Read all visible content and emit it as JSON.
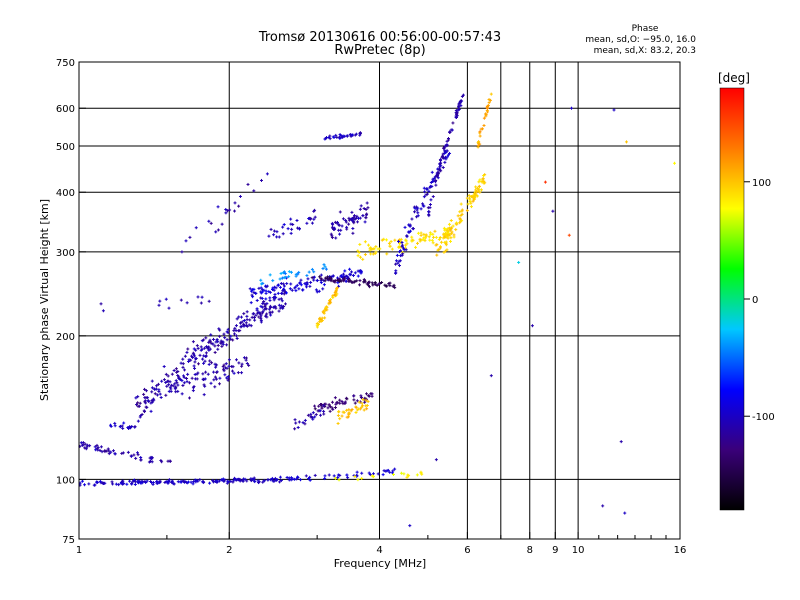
{
  "chart_data": {
    "type": "scatter",
    "title": "Tromsø 20130616 00:56:00-00:57:43",
    "subtitle": "RwPretec (8p)",
    "xlabel": "Frequency [MHz]",
    "ylabel": "Stationary phase Virtual Height [km]",
    "x_scale": "log",
    "y_scale": "log",
    "xlim": [
      1,
      16
    ],
    "ylim": [
      75,
      750
    ],
    "x_ticks": [
      1,
      2,
      4,
      6,
      8,
      9,
      10,
      16
    ],
    "x_tick_labels": [
      "1",
      "2",
      "4",
      "6",
      "8",
      "9",
      "10",
      "16"
    ],
    "x_gridlines": [
      2,
      4,
      6,
      7,
      8,
      9,
      10
    ],
    "y_ticks": [
      75,
      100,
      200,
      300,
      400,
      500,
      600,
      750
    ],
    "y_tick_labels": [
      "75",
      "100",
      "200",
      "300",
      "400",
      "500",
      "600",
      "750"
    ],
    "y_gridlines": [
      100,
      200,
      300,
      400,
      500,
      600
    ],
    "grid": true,
    "colorbar": {
      "label": "[deg]",
      "min": -180,
      "max": 180,
      "tick_values": [
        100,
        0,
        -100
      ],
      "tick_labels": [
        "100",
        "0",
        "-100"
      ],
      "colors": [
        "#000000",
        "#3a007a",
        "#0000ff",
        "#00c8ff",
        "#00ff00",
        "#ffff00",
        "#ff7a00",
        "#ff0000"
      ]
    },
    "stats": {
      "heading": "Phase",
      "line_o": "mean, sd,O: −95.0, 16.0",
      "line_x": "mean, sd,X:  83.2, 20.3"
    },
    "traces": [
      {
        "f0": 1.0,
        "f1": 2.6,
        "h0": 98,
        "h1": 100,
        "phase": -100,
        "n": 160,
        "jit": 1.5
      },
      {
        "f0": 2.6,
        "f1": 4.3,
        "h0": 100,
        "h1": 104,
        "phase": -95,
        "n": 45,
        "jit": 2
      },
      {
        "f0": 3.2,
        "f1": 4.9,
        "h0": 100,
        "h1": 103,
        "phase": 80,
        "n": 18,
        "jit": 2
      },
      {
        "f0": 1.0,
        "f1": 1.55,
        "h0": 118,
        "h1": 108,
        "phase": -110,
        "n": 55,
        "jit": 3
      },
      {
        "f0": 1.15,
        "f1": 1.3,
        "h0": 130,
        "h1": 128,
        "phase": -100,
        "n": 18,
        "jit": 3
      },
      {
        "f0": 1.3,
        "f1": 2.6,
        "h0": 140,
        "h1": 240,
        "phase": -110,
        "n": 260,
        "jit": 18
      },
      {
        "f0": 1.5,
        "f1": 2.2,
        "h0": 155,
        "h1": 175,
        "phase": -110,
        "n": 80,
        "jit": 15
      },
      {
        "f0": 2.2,
        "f1": 3.7,
        "h0": 245,
        "h1": 270,
        "phase": -95,
        "n": 130,
        "jit": 15
      },
      {
        "f0": 2.3,
        "f1": 3.2,
        "h0": 260,
        "h1": 280,
        "phase": -40,
        "n": 28,
        "jit": 10
      },
      {
        "f0": 2.9,
        "f1": 4.3,
        "h0": 265,
        "h1": 255,
        "phase": -140,
        "n": 70,
        "jit": 5
      },
      {
        "f0": 3.0,
        "f1": 3.3,
        "h0": 210,
        "h1": 250,
        "phase": 100,
        "n": 45,
        "jit": 8
      },
      {
        "f0": 3.2,
        "f1": 3.8,
        "h0": 330,
        "h1": 370,
        "phase": -110,
        "n": 60,
        "jit": 30
      },
      {
        "f0": 3.6,
        "f1": 5.6,
        "h0": 300,
        "h1": 330,
        "phase": 90,
        "n": 95,
        "jit": 20
      },
      {
        "f0": 4.3,
        "f1": 5.6,
        "h0": 280,
        "h1": 500,
        "phase": -100,
        "n": 90,
        "jit": 25
      },
      {
        "f0": 5.0,
        "f1": 5.9,
        "h0": 360,
        "h1": 640,
        "phase": -110,
        "n": 75,
        "jit": 20
      },
      {
        "f0": 5.2,
        "f1": 6.5,
        "h0": 295,
        "h1": 420,
        "phase": 95,
        "n": 100,
        "jit": 25
      },
      {
        "f0": 6.3,
        "f1": 6.7,
        "h0": 500,
        "h1": 640,
        "phase": 110,
        "n": 28,
        "jit": 25
      },
      {
        "f0": 3.1,
        "f1": 3.7,
        "h0": 520,
        "h1": 530,
        "phase": -100,
        "n": 32,
        "jit": 8
      },
      {
        "f0": 2.9,
        "f1": 3.9,
        "h0": 140,
        "h1": 150,
        "phase": -130,
        "n": 55,
        "jit": 6
      },
      {
        "f0": 3.3,
        "f1": 3.8,
        "h0": 135,
        "h1": 145,
        "phase": 100,
        "n": 35,
        "jit": 6
      },
      {
        "f0": 2.7,
        "f1": 3.1,
        "h0": 130,
        "h1": 140,
        "phase": -110,
        "n": 22,
        "jit": 6
      },
      {
        "f0": 1.6,
        "f1": 2.4,
        "h0": 300,
        "h1": 430,
        "phase": -110,
        "n": 22,
        "jit": 30
      },
      {
        "f0": 2.4,
        "f1": 3.0,
        "h0": 320,
        "h1": 360,
        "phase": -105,
        "n": 30,
        "jit": 25
      },
      {
        "f0": 1.0,
        "f1": 2.0,
        "h0": 230,
        "h1": 240,
        "phase": -110,
        "n": 12,
        "jit": 10
      }
    ],
    "scatter_extra": [
      {
        "f": 8.1,
        "h": 210,
        "phase": -110
      },
      {
        "f": 8.6,
        "h": 420,
        "phase": 160
      },
      {
        "f": 8.9,
        "h": 365,
        "phase": -110
      },
      {
        "f": 9.6,
        "h": 325,
        "phase": 150
      },
      {
        "f": 9.7,
        "h": 600,
        "phase": -100
      },
      {
        "f": 11.2,
        "h": 88,
        "phase": -110
      },
      {
        "f": 12.4,
        "h": 85,
        "phase": -100
      },
      {
        "f": 12.2,
        "h": 120,
        "phase": -110
      },
      {
        "f": 11.8,
        "h": 595,
        "phase": -100
      },
      {
        "f": 15.6,
        "h": 460,
        "phase": 80
      },
      {
        "f": 7.6,
        "h": 285,
        "phase": -20
      },
      {
        "f": 6.7,
        "h": 165,
        "phase": -110
      },
      {
        "f": 5.2,
        "h": 110,
        "phase": -110
      },
      {
        "f": 4.6,
        "h": 80,
        "phase": -100
      },
      {
        "f": 12.5,
        "h": 510,
        "phase": 100
      }
    ]
  }
}
